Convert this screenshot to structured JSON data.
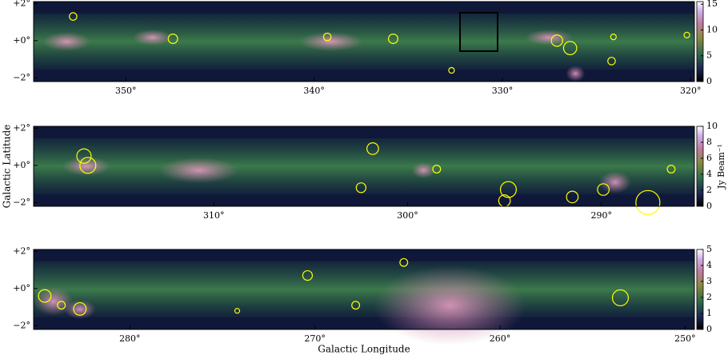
{
  "chart_data": [
    {
      "type": "image",
      "xlim": [
        354.9,
        319.8
      ],
      "xticks": [
        {
          "value": 350,
          "label": "350°"
        },
        {
          "value": 340,
          "label": "340°"
        },
        {
          "value": 330,
          "label": "330°"
        },
        {
          "value": 320,
          "label": "320°"
        }
      ],
      "ylim": [
        -2.2,
        2.1
      ],
      "yticks": [
        {
          "value": 2,
          "label": "+2°"
        },
        {
          "value": 0,
          "label": "+0°"
        },
        {
          "value": -2,
          "label": "−2°"
        }
      ],
      "colorbar": {
        "lim": [
          0,
          15.5
        ],
        "ticks": [
          0,
          5,
          10,
          15
        ]
      },
      "sources": {
        "color": "#ffff00",
        "x": [
          352.8,
          347.5,
          339.3,
          335.8,
          327.1,
          326.4,
          324.1,
          324.2,
          320.2,
          332.7
        ],
        "y": [
          1.3,
          0.1,
          0.2,
          0.1,
          0.0,
          -0.4,
          0.2,
          -1.1,
          0.3,
          -1.6
        ],
        "r": [
          0.2,
          0.25,
          0.2,
          0.25,
          0.3,
          0.35,
          0.15,
          0.2,
          0.15,
          0.15
        ]
      }
    },
    {
      "type": "image",
      "ylabel": "Galactic Latitude",
      "colorbar_label": "Jy Beam⁻¹",
      "xlim": [
        319.3,
        285.2
      ],
      "xticks": [
        {
          "value": 310,
          "label": "310°"
        },
        {
          "value": 300,
          "label": "300°"
        },
        {
          "value": 290,
          "label": "290°"
        }
      ],
      "ylim": [
        -2.2,
        2.1
      ],
      "yticks": [
        {
          "value": 2,
          "label": "+2°"
        },
        {
          "value": 0,
          "label": "+0°"
        },
        {
          "value": -2,
          "label": "−2°"
        }
      ],
      "colorbar": {
        "lim": [
          0,
          10
        ],
        "ticks": [
          0,
          2,
          4,
          6,
          8,
          10
        ]
      },
      "sources": {
        "color": "#ffff00",
        "x": [
          316.7,
          316.5,
          301.8,
          302.4,
          295.0,
          294.8,
          287.6,
          291.5,
          286.4,
          289.9,
          298.5
        ],
        "y": [
          0.5,
          0.0,
          0.9,
          -1.2,
          -1.9,
          -1.3,
          -2.0,
          -1.7,
          -0.2,
          -1.3,
          -0.2
        ],
        "r": [
          0.37,
          0.41,
          0.3,
          0.25,
          0.3,
          0.41,
          0.62,
          0.3,
          0.2,
          0.3,
          0.2
        ]
      }
    },
    {
      "type": "image",
      "xlabel": "Galactic Longitude",
      "xlim": [
        285.2,
        249.5
      ],
      "xticks": [
        {
          "value": 280,
          "label": "280°"
        },
        {
          "value": 270,
          "label": "270°"
        },
        {
          "value": 260,
          "label": "260°"
        },
        {
          "value": 250,
          "label": "250°"
        }
      ],
      "ylim": [
        -2.2,
        2.1
      ],
      "yticks": [
        {
          "value": 2,
          "label": "+2°"
        },
        {
          "value": 0,
          "label": "+0°"
        },
        {
          "value": -2,
          "label": "−2°"
        }
      ],
      "colorbar": {
        "lim": [
          0,
          5
        ],
        "ticks": [
          0,
          1,
          2,
          3,
          4,
          5
        ]
      },
      "sources": {
        "color": "#ffff00",
        "x": [
          284.6,
          282.7,
          270.4,
          265.2,
          253.5,
          267.8,
          274.2,
          283.7
        ],
        "y": [
          -0.4,
          -1.1,
          0.7,
          1.4,
          -0.5,
          -0.9,
          -1.2,
          -0.9
        ],
        "r": [
          0.34,
          0.34,
          0.26,
          0.21,
          0.43,
          0.21,
          0.13,
          0.21
        ]
      }
    }
  ]
}
